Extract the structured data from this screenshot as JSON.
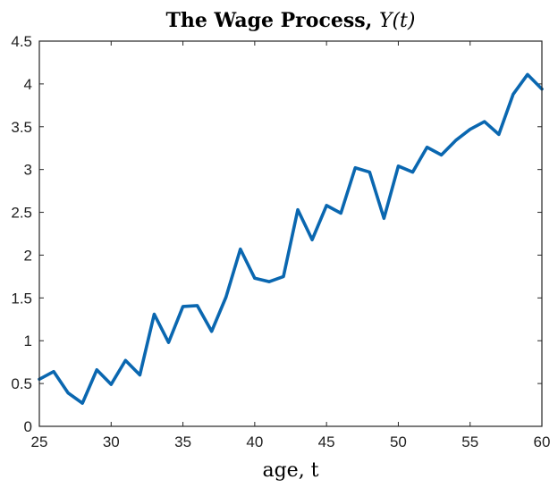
{
  "chart_data": {
    "type": "line",
    "title": "The Wage Process, Y(t)",
    "title_parts": {
      "text": "The Wage Process, ",
      "math": "Y(t)"
    },
    "xlabel": "age, t",
    "ylabel": "",
    "xlim": [
      25,
      60
    ],
    "ylim": [
      0,
      4.5
    ],
    "xticks": [
      "25",
      "30",
      "35",
      "40",
      "45",
      "50",
      "55",
      "60"
    ],
    "yticks": [
      "0",
      "0.5",
      "1",
      "1.5",
      "2",
      "2.5",
      "3",
      "3.5",
      "4",
      "4.5"
    ],
    "grid": false,
    "series_color": "#0a67b0",
    "series": [
      {
        "x": [
          25,
          26,
          27,
          28,
          29,
          30,
          31,
          32,
          33,
          34,
          35,
          36,
          37,
          38,
          39,
          40,
          41,
          42,
          43,
          44,
          45,
          46,
          47,
          48,
          49,
          50,
          51,
          52,
          53,
          54,
          55,
          56,
          57,
          58,
          59,
          60
        ],
        "values": [
          0.55,
          0.64,
          0.39,
          0.27,
          0.66,
          0.49,
          0.77,
          0.6,
          1.31,
          0.98,
          1.4,
          1.41,
          1.11,
          1.51,
          2.07,
          1.73,
          1.69,
          1.75,
          2.53,
          2.18,
          2.58,
          2.49,
          3.02,
          2.97,
          2.43,
          3.04,
          2.97,
          3.26,
          3.17,
          3.34,
          3.47,
          3.56,
          3.41,
          3.88,
          4.11,
          3.94
        ]
      }
    ]
  }
}
